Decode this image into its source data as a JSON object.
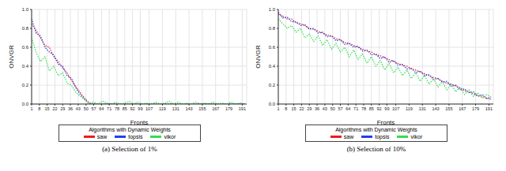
{
  "chart_data": [
    {
      "type": "line",
      "title": "(a) Selection of 1%",
      "x_label": "Fronts",
      "y_label": "ONVGR",
      "legend_title": "Algorithms with Dynamic Weights",
      "legend": "bottom",
      "grid": true,
      "x": [
        1,
        5,
        9,
        13,
        17,
        21,
        25,
        29,
        33,
        37,
        41,
        45,
        49,
        53,
        57,
        61,
        65,
        69,
        73,
        77,
        81,
        85,
        89,
        93,
        97,
        101,
        105,
        109,
        113,
        117,
        121,
        125,
        129,
        133,
        137,
        141,
        145,
        149,
        153,
        157,
        161,
        165,
        169,
        173,
        177,
        181,
        185,
        189,
        193
      ],
      "xlim": [
        1,
        195
      ],
      "xticks": [
        1,
        8,
        15,
        22,
        29,
        36,
        43,
        50,
        57,
        64,
        71,
        78,
        85,
        92,
        99,
        107,
        119,
        131,
        143,
        155,
        167,
        179,
        191
      ],
      "ylim": [
        0,
        1
      ],
      "yticks": [
        {
          "value": 0,
          "label": "0.0"
        },
        {
          "value": 0.2,
          "label": "0.2"
        },
        {
          "value": 0.4,
          "label": "0.4"
        },
        {
          "value": 0.6,
          "label": "0.6"
        },
        {
          "value": 0.8,
          "label": "0.8"
        },
        {
          "value": 1,
          "label": "1.0"
        }
      ],
      "series": [
        {
          "name": "saw",
          "color": "#ee1c1c",
          "line_style": "dotted",
          "values": [
            0.85,
            0.78,
            0.7,
            0.62,
            0.6,
            0.5,
            0.45,
            0.38,
            0.33,
            0.25,
            0.18,
            0.12,
            0.06,
            0.01,
            0,
            0,
            0,
            0,
            0,
            0,
            0,
            0,
            0,
            0,
            0,
            0,
            0,
            0,
            0,
            0,
            0,
            0,
            0,
            0,
            0,
            0,
            0,
            0,
            0,
            0,
            0,
            0,
            0,
            0,
            0,
            0,
            0,
            0,
            0
          ]
        },
        {
          "name": "topsis",
          "color": "#2040ee",
          "line_style": "dotted",
          "values": [
            0.9,
            0.75,
            0.72,
            0.6,
            0.55,
            0.52,
            0.42,
            0.4,
            0.3,
            0.27,
            0.17,
            0.1,
            0.05,
            0,
            0,
            0,
            0,
            0,
            0,
            0,
            0,
            0,
            0,
            0,
            0,
            0,
            0,
            0,
            0,
            0,
            0,
            0,
            0,
            0,
            0,
            0,
            0,
            0,
            0,
            0,
            0,
            0,
            0,
            0,
            0,
            0,
            0,
            0,
            0
          ]
        },
        {
          "name": "vikor",
          "color": "#33dd55",
          "line_style": "dotted",
          "values": [
            0.7,
            0.55,
            0.45,
            0.5,
            0.35,
            0.4,
            0.3,
            0.33,
            0.22,
            0.2,
            0.12,
            0.08,
            0.04,
            0.01,
            0.02,
            0,
            0.03,
            0.01,
            0,
            0.02,
            0,
            0.01,
            0.03,
            0,
            0.02,
            0,
            0.01,
            0,
            0.02,
            0,
            0.01,
            0.03,
            0,
            0.02,
            0,
            0.01,
            0,
            0.02,
            0,
            0.01,
            0,
            0.02,
            0,
            0.01,
            0,
            0.02,
            0,
            0.01,
            0
          ]
        }
      ]
    },
    {
      "type": "line",
      "title": "(b) Selection of 10%",
      "x_label": "Fronts",
      "y_label": "ONVGR",
      "legend_title": "Algorithms with Dynamic Weights",
      "legend": "bottom",
      "grid": true,
      "x": [
        1,
        5,
        9,
        13,
        17,
        21,
        25,
        29,
        33,
        37,
        41,
        45,
        49,
        53,
        57,
        61,
        65,
        69,
        73,
        77,
        81,
        85,
        89,
        93,
        97,
        101,
        105,
        109,
        113,
        117,
        121,
        125,
        129,
        133,
        137,
        141,
        145,
        149,
        153,
        157,
        161,
        165,
        169,
        173,
        177,
        181,
        185,
        189,
        193
      ],
      "xlim": [
        1,
        195
      ],
      "xticks": [
        1,
        8,
        15,
        22,
        29,
        36,
        43,
        50,
        57,
        64,
        71,
        78,
        85,
        92,
        99,
        107,
        119,
        131,
        143,
        155,
        167,
        179,
        191
      ],
      "ylim": [
        0,
        1
      ],
      "yticks": [
        {
          "value": 0,
          "label": "0.0"
        },
        {
          "value": 0.2,
          "label": "0.2"
        },
        {
          "value": 0.4,
          "label": "0.4"
        },
        {
          "value": 0.6,
          "label": "0.6"
        },
        {
          "value": 0.8,
          "label": "0.8"
        },
        {
          "value": 1,
          "label": "1.0"
        }
      ],
      "series": [
        {
          "name": "saw",
          "color": "#ee1c1c",
          "line_style": "dotted",
          "values": [
            0.95,
            0.93,
            0.9,
            0.9,
            0.86,
            0.85,
            0.83,
            0.8,
            0.79,
            0.77,
            0.75,
            0.73,
            0.72,
            0.69,
            0.68,
            0.65,
            0.64,
            0.62,
            0.6,
            0.58,
            0.56,
            0.55,
            0.52,
            0.51,
            0.49,
            0.47,
            0.45,
            0.43,
            0.41,
            0.4,
            0.37,
            0.36,
            0.34,
            0.32,
            0.3,
            0.28,
            0.27,
            0.24,
            0.22,
            0.21,
            0.19,
            0.17,
            0.14,
            0.13,
            0.11,
            0.09,
            0.08,
            0.06,
            0.05
          ]
        },
        {
          "name": "topsis",
          "color": "#2040ee",
          "line_style": "dotted",
          "values": [
            0.97,
            0.91,
            0.92,
            0.87,
            0.87,
            0.83,
            0.84,
            0.79,
            0.8,
            0.75,
            0.76,
            0.71,
            0.72,
            0.67,
            0.68,
            0.63,
            0.64,
            0.6,
            0.61,
            0.56,
            0.57,
            0.52,
            0.53,
            0.48,
            0.5,
            0.44,
            0.46,
            0.41,
            0.42,
            0.37,
            0.38,
            0.33,
            0.35,
            0.3,
            0.31,
            0.26,
            0.27,
            0.23,
            0.24,
            0.19,
            0.2,
            0.15,
            0.16,
            0.12,
            0.13,
            0.08,
            0.1,
            0.06,
            0.07
          ]
        },
        {
          "name": "vikor",
          "color": "#33dd55",
          "line_style": "dotted",
          "values": [
            0.9,
            0.85,
            0.8,
            0.83,
            0.76,
            0.8,
            0.7,
            0.74,
            0.66,
            0.72,
            0.62,
            0.68,
            0.58,
            0.64,
            0.55,
            0.6,
            0.5,
            0.57,
            0.47,
            0.53,
            0.43,
            0.5,
            0.4,
            0.46,
            0.36,
            0.43,
            0.33,
            0.39,
            0.3,
            0.36,
            0.27,
            0.33,
            0.24,
            0.3,
            0.21,
            0.27,
            0.18,
            0.24,
            0.15,
            0.21,
            0.13,
            0.18,
            0.1,
            0.15,
            0.08,
            0.12,
            0.06,
            0.1,
            0.07
          ]
        }
      ]
    }
  ]
}
